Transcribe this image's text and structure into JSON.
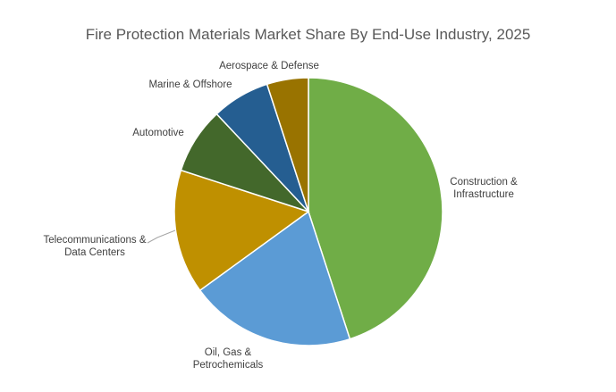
{
  "chart_data": {
    "type": "pie",
    "title": "Fire Protection Materials Market Share By End-Use Industry, 2025",
    "slices": [
      {
        "label": [
          "Construction &",
          "Infrastructure"
        ],
        "value": 45,
        "color": "#70AD47"
      },
      {
        "label": [
          "Oil, Gas &",
          "Petrochemicals"
        ],
        "value": 20,
        "color": "#5B9BD5"
      },
      {
        "label": [
          "Telecommunications &",
          "Data Centers"
        ],
        "value": 15,
        "color": "#BF9000"
      },
      {
        "label": [
          "Automotive"
        ],
        "value": 8,
        "color": "#43682B"
      },
      {
        "label": [
          "Marine & Offshore"
        ],
        "value": 7,
        "color": "#255E91"
      },
      {
        "label": [
          "Aerospace & Defense"
        ],
        "value": 5,
        "color": "#997300"
      }
    ],
    "legend": "none"
  }
}
